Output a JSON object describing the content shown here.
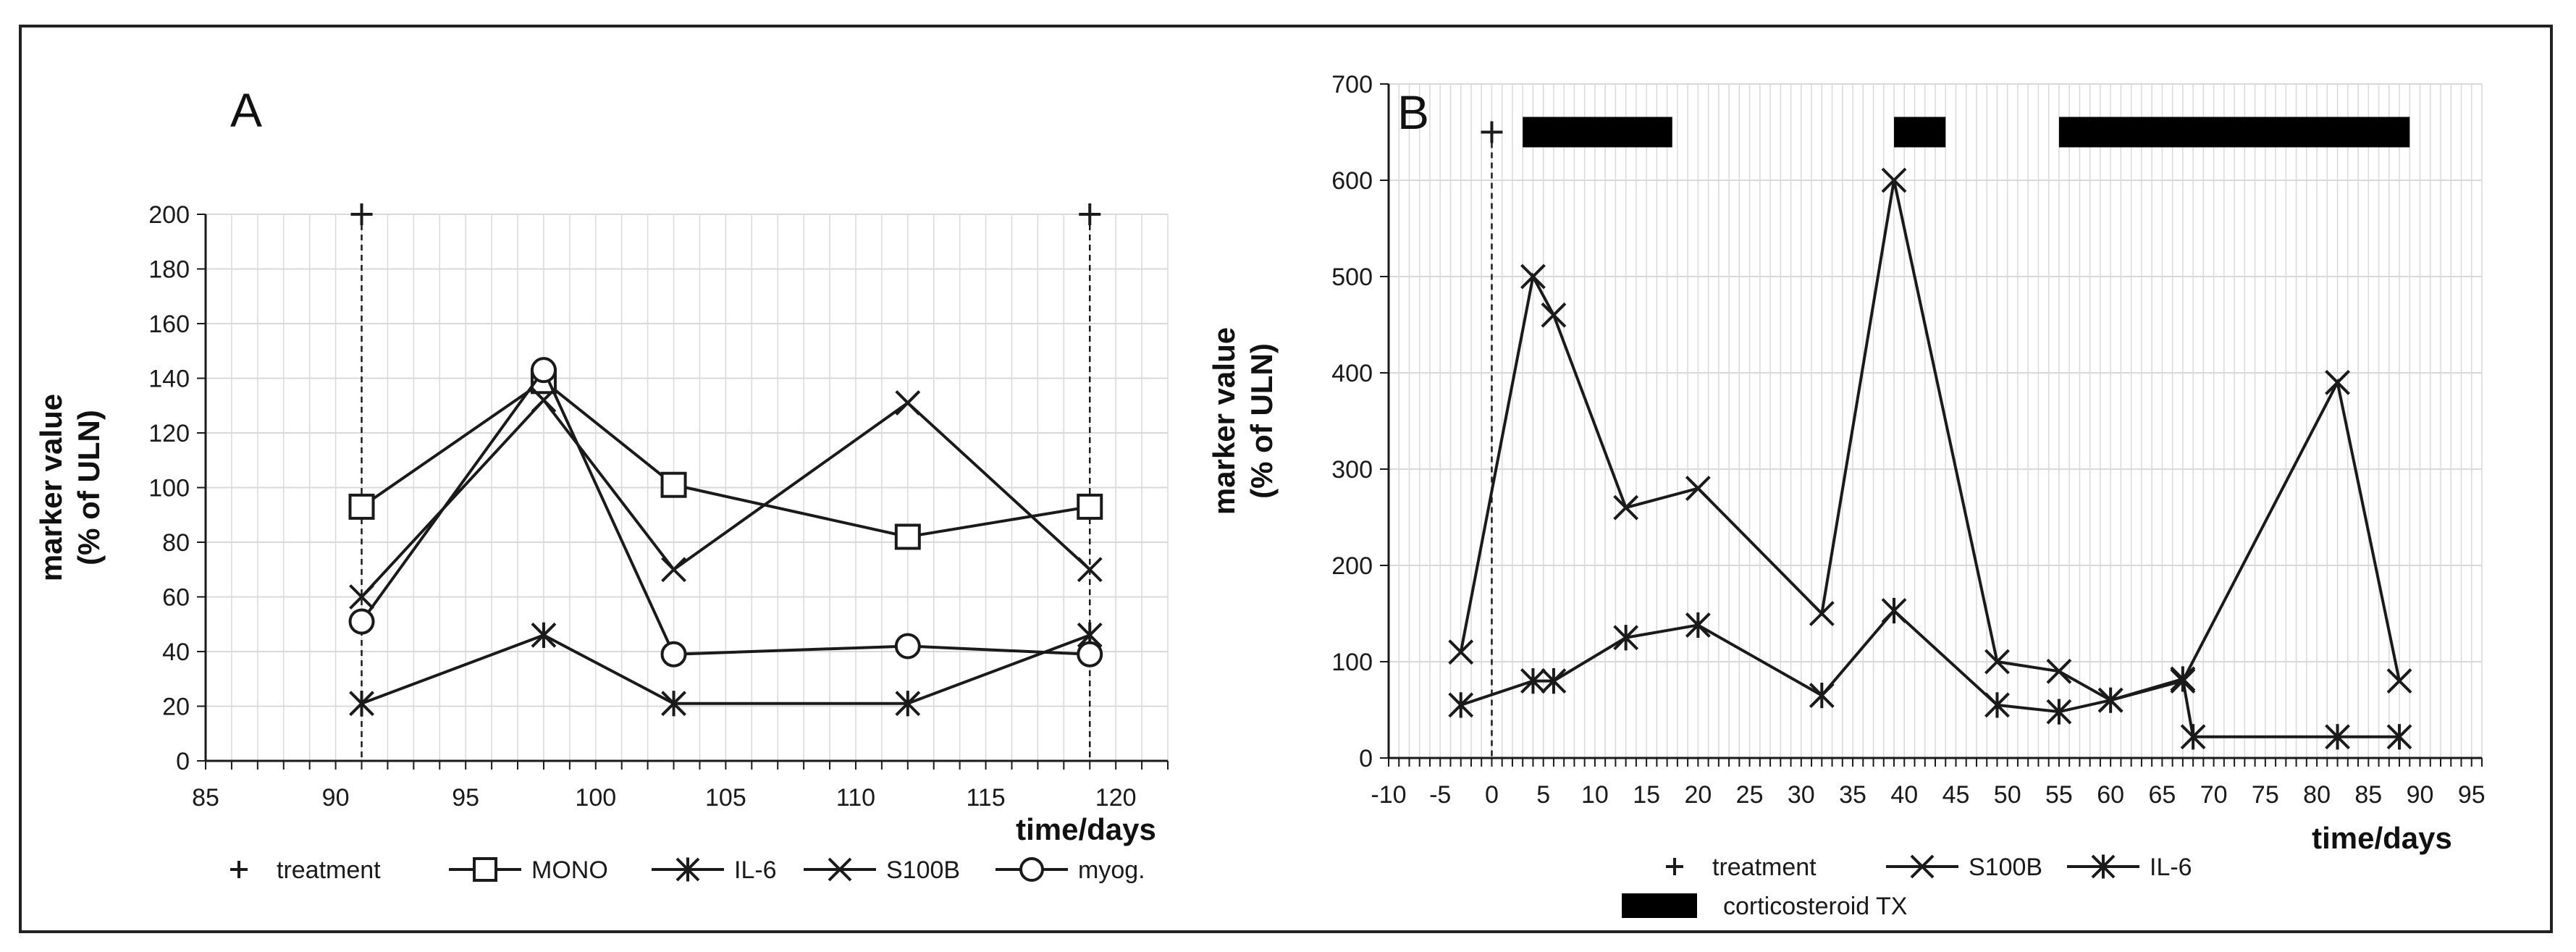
{
  "colors": {
    "line": "#1a1a1a",
    "grid": "#d9d9d9",
    "bar": "#000000",
    "background": "#ffffff"
  },
  "chart_data": [
    {
      "panel": "A",
      "type": "line",
      "title": "",
      "xlabel": "time/days",
      "ylabel": [
        "marker value",
        "(% of ULN)"
      ],
      "xlim": [
        85,
        122
      ],
      "ylim": [
        0,
        200
      ],
      "x_ticks": [
        85,
        90,
        95,
        100,
        105,
        110,
        115,
        120
      ],
      "y_ticks": [
        0,
        20,
        40,
        60,
        80,
        100,
        120,
        140,
        160,
        180,
        200
      ],
      "grid": true,
      "treatment": {
        "name": "treatment",
        "x": [
          91,
          119
        ],
        "y": 200
      },
      "series": [
        {
          "name": "MONO",
          "marker": "square",
          "x": [
            91,
            98,
            103,
            112,
            119
          ],
          "values": [
            93,
            139,
            101,
            82,
            93
          ]
        },
        {
          "name": "IL-6",
          "marker": "asterisk",
          "x": [
            91,
            98,
            103,
            112,
            119
          ],
          "values": [
            21,
            46,
            21,
            21,
            46
          ]
        },
        {
          "name": "S100B",
          "marker": "x",
          "x": [
            91,
            98,
            103,
            112,
            119
          ],
          "values": [
            60,
            132,
            70,
            131,
            70
          ]
        },
        {
          "name": "myog.",
          "marker": "circle",
          "x": [
            91,
            98,
            103,
            112,
            119
          ],
          "values": [
            51,
            143,
            39,
            42,
            39
          ]
        }
      ],
      "legend": [
        "treatment",
        "MONO",
        "IL-6",
        "S100B",
        "myog."
      ]
    },
    {
      "panel": "B",
      "type": "line",
      "title": "",
      "xlabel": "time/days",
      "ylabel": [
        "marker value",
        "(% of ULN)"
      ],
      "xlim": [
        -10,
        96
      ],
      "ylim": [
        0,
        700
      ],
      "x_ticks": [
        -10,
        -5,
        0,
        5,
        10,
        15,
        20,
        25,
        30,
        35,
        40,
        45,
        50,
        55,
        60,
        65,
        70,
        75,
        80,
        85,
        90,
        95
      ],
      "y_ticks": [
        0,
        100,
        200,
        300,
        400,
        500,
        600,
        700
      ],
      "grid": true,
      "treatment": {
        "name": "treatment",
        "x": [
          0
        ],
        "y": 650
      },
      "corticosteroid_periods": [
        [
          3,
          17.5
        ],
        [
          39,
          44
        ],
        [
          55,
          89
        ]
      ],
      "corticosteroid_y": 650,
      "series": [
        {
          "name": "S100B",
          "marker": "x",
          "x": [
            -3,
            4,
            6,
            13,
            20,
            32,
            39,
            49,
            55,
            60,
            67,
            82,
            88
          ],
          "values": [
            110,
            500,
            460,
            260,
            280,
            150,
            600,
            100,
            90,
            60,
            80,
            390,
            80
          ]
        },
        {
          "name": "IL-6",
          "marker": "asterisk",
          "x": [
            -3,
            4,
            6,
            13,
            20,
            32,
            39,
            49,
            55,
            60,
            67,
            68,
            82,
            88
          ],
          "values": [
            55,
            80,
            80,
            125,
            138,
            65,
            153,
            55,
            48,
            60,
            82,
            22,
            22,
            22
          ]
        }
      ],
      "legend": [
        "treatment",
        "S100B",
        "IL-6",
        "corticosteroid TX"
      ]
    }
  ]
}
